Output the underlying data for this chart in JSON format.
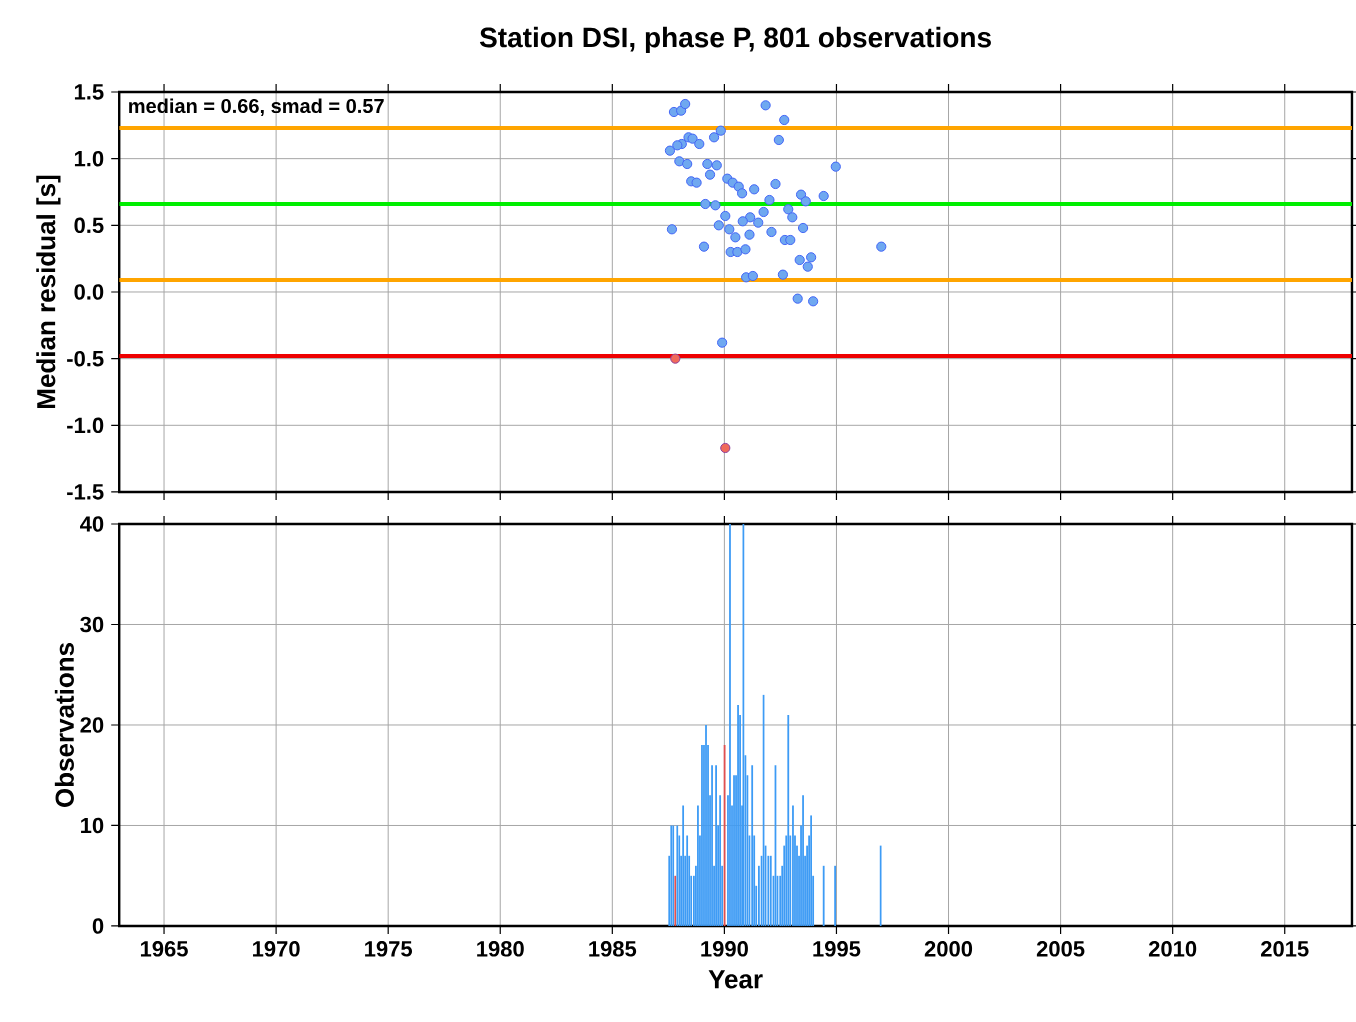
{
  "chart_data": [
    {
      "type": "scatter",
      "title": "Station DSI, phase P, 801 observations",
      "ylabel": "Median residual [s]",
      "xlim": [
        1963,
        2018
      ],
      "xticks": [
        1965,
        1970,
        1975,
        1980,
        1985,
        1990,
        1995,
        2000,
        2005,
        2010,
        2015
      ],
      "ylim": [
        -1.5,
        1.5
      ],
      "yticks": [
        {
          "value": -1.5,
          "label": "-1.5"
        },
        {
          "value": -1,
          "label": "-1.0"
        },
        {
          "value": -0.5,
          "label": "-0.5"
        },
        {
          "value": 0,
          "label": "0.0"
        },
        {
          "value": 0.5,
          "label": "0.5"
        },
        {
          "value": 1,
          "label": "1.0"
        },
        {
          "value": 1.5,
          "label": "1.5"
        }
      ],
      "tick_labels": "y",
      "grid": true,
      "annotations": [
        "median = 0.66, smad = 0.57"
      ],
      "ref_lines": [
        {
          "axis": "y",
          "value": 1.23,
          "color": "#ffa500"
        },
        {
          "axis": "y",
          "value": 0.66,
          "color": "#00ee00"
        },
        {
          "axis": "y",
          "value": 0.09,
          "color": "#ffa500"
        },
        {
          "axis": "y",
          "value": -0.48,
          "color": "#ee0000"
        }
      ],
      "series": [
        {
          "color": "#6fa8f0",
          "marker": "circle",
          "x": [
            1987.75,
            1988.07,
            1988.25,
            1991.84,
            1992.67,
            1989.84,
            1989.54,
            1988.4,
            1988.58,
            1988.1,
            1987.9,
            1987.57,
            1988.88,
            1992.43,
            1987.99,
            1988.34,
            1989.24,
            1989.66,
            1989.36,
            1994.97,
            1988.52,
            1988.76,
            1990.13,
            1990.37,
            1990.64,
            1990.79,
            1991.33,
            1992.28,
            1993.42,
            1993.63,
            1994.43,
            1992.01,
            1989.15,
            1989.6,
            1991.75,
            1992.85,
            1993.03,
            1990.04,
            1991.15,
            1990.82,
            1991.51,
            1989.75,
            1990.22,
            1987.66,
            1992.1,
            1993.51,
            1991.12,
            1990.49,
            1992.7,
            1992.94,
            1989.09,
            1997.0,
            1990.28,
            1990.58,
            1990.94,
            1993.36,
            1993.87,
            1993.72,
            1990.97,
            1991.27,
            1992.61,
            1993.27,
            1993.96,
            1989.9
          ],
          "values": [
            1.35,
            1.36,
            1.41,
            1.4,
            1.29,
            1.21,
            1.16,
            1.16,
            1.15,
            1.11,
            1.1,
            1.06,
            1.11,
            1.14,
            0.98,
            0.96,
            0.96,
            0.95,
            0.88,
            0.94,
            0.83,
            0.82,
            0.85,
            0.82,
            0.79,
            0.74,
            0.77,
            0.81,
            0.73,
            0.68,
            0.72,
            0.69,
            0.66,
            0.65,
            0.6,
            0.62,
            0.56,
            0.57,
            0.56,
            0.53,
            0.52,
            0.5,
            0.47,
            0.47,
            0.45,
            0.48,
            0.43,
            0.41,
            0.39,
            0.39,
            0.34,
            0.34,
            0.3,
            0.3,
            0.32,
            0.24,
            0.26,
            0.19,
            0.11,
            0.12,
            0.13,
            -0.05,
            -0.07,
            -0.38
          ]
        },
        {
          "color": "#f06a5a",
          "marker": "circle",
          "x": [
            1987.81,
            1990.04
          ],
          "values": [
            -0.5,
            -1.17
          ]
        }
      ]
    },
    {
      "type": "bar",
      "xlabel": "Year",
      "ylabel": "Observations",
      "xlim": [
        1963,
        2018
      ],
      "xticks": [
        1965,
        1970,
        1975,
        1980,
        1985,
        1990,
        1995,
        2000,
        2005,
        2010,
        2015
      ],
      "ylim": [
        0,
        40
      ],
      "yticks": [
        0,
        10,
        20,
        30,
        40
      ],
      "grid": true,
      "x": [
        1987.54,
        1987.63,
        1987.72,
        1987.81,
        1987.9,
        1987.99,
        1988.07,
        1988.16,
        1988.25,
        1988.34,
        1988.43,
        1988.52,
        1988.64,
        1988.73,
        1988.82,
        1988.91,
        1989.0,
        1989.09,
        1989.18,
        1989.27,
        1989.36,
        1989.45,
        1989.54,
        1989.63,
        1989.72,
        1989.81,
        1989.9,
        1990.01,
        1990.16,
        1990.25,
        1990.34,
        1990.43,
        1990.52,
        1990.61,
        1990.7,
        1990.79,
        1990.85,
        1990.94,
        1991.03,
        1991.12,
        1991.24,
        1991.33,
        1991.42,
        1991.54,
        1991.66,
        1991.75,
        1991.84,
        1991.96,
        1992.07,
        1992.19,
        1992.28,
        1992.37,
        1992.49,
        1992.58,
        1992.67,
        1992.76,
        1992.85,
        1992.94,
        1993.06,
        1993.15,
        1993.24,
        1993.33,
        1993.42,
        1993.51,
        1993.6,
        1993.69,
        1993.78,
        1993.87,
        1993.96,
        1994.43,
        1994.94,
        1996.97
      ],
      "values": [
        7,
        10,
        10,
        5,
        10,
        9,
        7,
        12,
        7,
        9,
        7,
        5,
        5,
        6,
        12,
        9,
        18,
        18,
        20,
        18,
        13,
        16,
        6,
        16,
        10,
        13,
        6,
        18,
        13,
        40,
        12,
        15,
        15,
        22,
        21,
        12,
        40,
        17,
        15,
        9,
        16,
        9,
        4,
        6,
        7,
        23,
        8,
        7,
        7,
        5,
        16,
        5,
        5,
        6,
        8,
        9,
        21,
        9,
        12,
        9,
        8,
        7,
        10,
        13,
        7,
        8,
        9,
        11,
        5,
        6,
        6,
        8
      ],
      "colors": [
        "#3d9bf5",
        "#3d9bf5",
        "#3d9bf5",
        "#e05050",
        "#3d9bf5",
        "#3d9bf5",
        "#3d9bf5",
        "#3d9bf5",
        "#3d9bf5",
        "#3d9bf5",
        "#3d9bf5",
        "#3d9bf5",
        "#3d9bf5",
        "#3d9bf5",
        "#3d9bf5",
        "#3d9bf5",
        "#3d9bf5",
        "#3d9bf5",
        "#3d9bf5",
        "#3d9bf5",
        "#3d9bf5",
        "#3d9bf5",
        "#3d9bf5",
        "#3d9bf5",
        "#3d9bf5",
        "#3d9bf5",
        "#3d9bf5",
        "#e05050",
        "#3d9bf5",
        "#3d9bf5",
        "#3d9bf5",
        "#3d9bf5",
        "#3d9bf5",
        "#3d9bf5",
        "#3d9bf5",
        "#3d9bf5",
        "#3d9bf5",
        "#3d9bf5",
        "#3d9bf5",
        "#3d9bf5",
        "#3d9bf5",
        "#3d9bf5",
        "#3d9bf5",
        "#3d9bf5",
        "#3d9bf5",
        "#3d9bf5",
        "#3d9bf5",
        "#3d9bf5",
        "#3d9bf5",
        "#3d9bf5",
        "#3d9bf5",
        "#3d9bf5",
        "#3d9bf5",
        "#3d9bf5",
        "#3d9bf5",
        "#3d9bf5",
        "#3d9bf5",
        "#3d9bf5",
        "#3d9bf5",
        "#3d9bf5",
        "#3d9bf5",
        "#3d9bf5",
        "#3d9bf5",
        "#3d9bf5",
        "#3d9bf5",
        "#3d9bf5",
        "#3d9bf5",
        "#3d9bf5",
        "#3d9bf5",
        "#3d9bf5",
        "#3d9bf5",
        "#3d9bf5"
      ]
    }
  ]
}
